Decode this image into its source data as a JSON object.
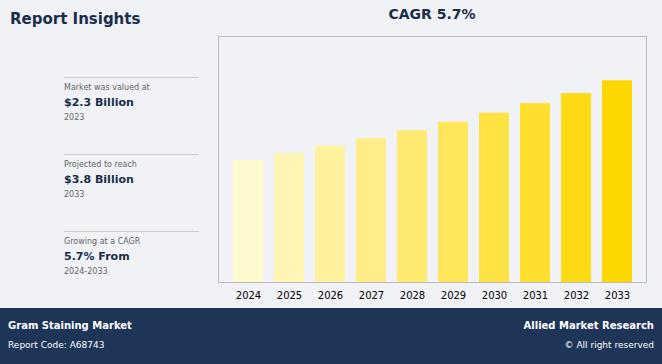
{
  "chart_data": {
    "type": "bar",
    "title": "CAGR 5.7%",
    "categories": [
      "2024",
      "2025",
      "2026",
      "2027",
      "2028",
      "2029",
      "2030",
      "2031",
      "2032",
      "2033"
    ],
    "values": [
      2.3,
      2.43,
      2.57,
      2.71,
      2.86,
      3.02,
      3.19,
      3.37,
      3.56,
      3.8
    ],
    "colors": [
      "#fffacd",
      "#fff6b6",
      "#fff29f",
      "#ffee88",
      "#ffea71",
      "#ffe65b",
      "#ffe244",
      "#ffde2d",
      "#ffda16",
      "#ffd700"
    ],
    "ylim": [
      0,
      4.636
    ],
    "yticks": [],
    "tick_labels": "x",
    "grid": false,
    "annotations": [
      "Report Insights",
      "Market was valued at",
      "$2.3 Billion",
      "2023",
      "Projected to reach",
      "$3.8 Billion",
      "2033",
      "Growing at a CAGR",
      "5.7% From",
      "2024-2033",
      "Gram Staining Market",
      "Report Code: A68743",
      "Allied Market Research",
      "© All right reserved"
    ]
  }
}
